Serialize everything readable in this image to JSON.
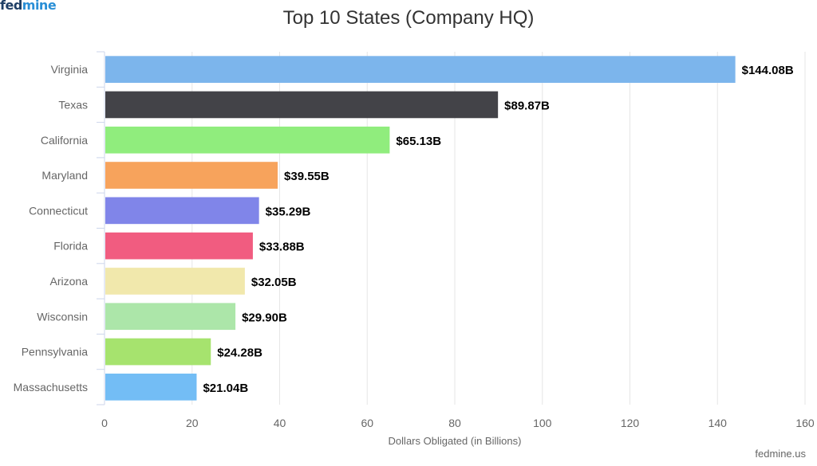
{
  "logo": {
    "part1": "fed",
    "part2": "mine"
  },
  "credit": "fedmine.us",
  "chart_data": {
    "type": "bar",
    "orientation": "horizontal",
    "title": "Top 10 States (Company HQ)",
    "xlabel": "Dollars Obligated (in Billions)",
    "ylabel": "",
    "xlim": [
      0,
      160
    ],
    "ticks": [
      0,
      20,
      40,
      60,
      80,
      100,
      120,
      140,
      160
    ],
    "grid": true,
    "categories": [
      "Virginia",
      "Texas",
      "California",
      "Maryland",
      "Connecticut",
      "Florida",
      "Arizona",
      "Wisconsin",
      "Pennsylvania",
      "Massachusetts"
    ],
    "values": [
      144.08,
      89.87,
      65.13,
      39.55,
      35.29,
      33.88,
      32.05,
      29.9,
      24.28,
      21.04
    ],
    "labels": [
      "$144.08B",
      "$89.87B",
      "$65.13B",
      "$39.55B",
      "$35.29B",
      "$33.88B",
      "$32.05B",
      "$29.90B",
      "$24.28B",
      "$21.04B"
    ],
    "colors": [
      "#7cb5ec",
      "#434348",
      "#90ed7d",
      "#f7a35c",
      "#8085e9",
      "#f15c80",
      "#f1e8ac",
      "#ace6a9",
      "#a6e36e",
      "#73bdf5"
    ]
  }
}
